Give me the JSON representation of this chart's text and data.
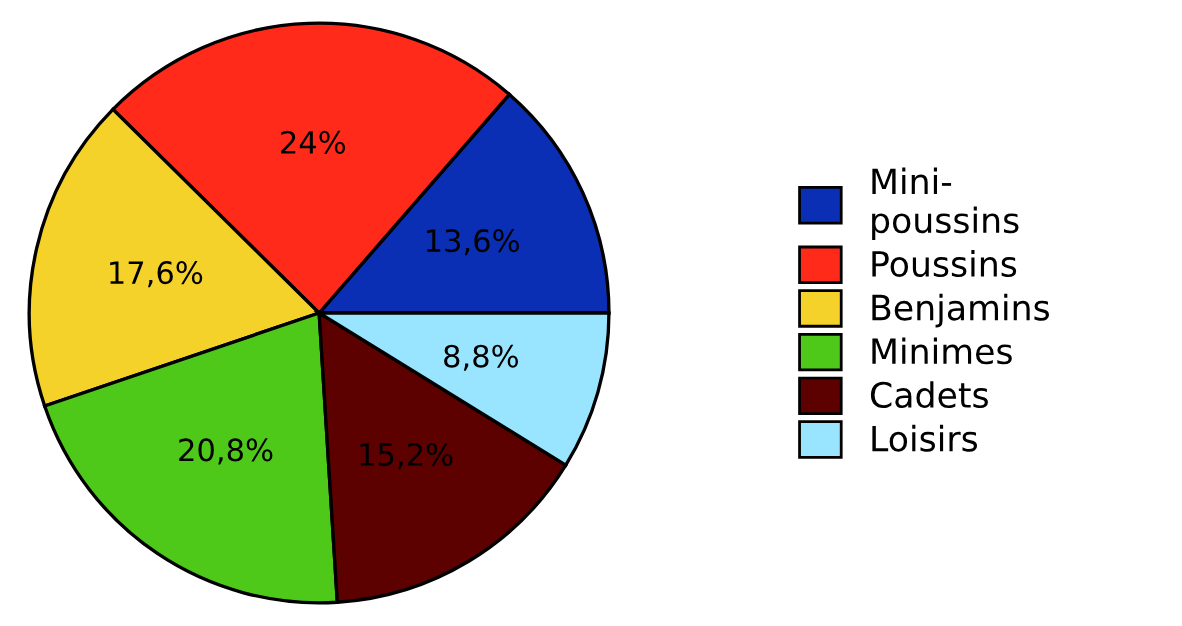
{
  "chart_data": {
    "type": "pie",
    "categories": [
      "Mini-\npoussins",
      "Poussins",
      "Benjamins",
      "Minimes",
      "Cadets",
      "Loisirs"
    ],
    "values": [
      13.6,
      24,
      17.6,
      20.8,
      15.2,
      8.8
    ],
    "value_labels": [
      "13,6%",
      "24%",
      "17,6%",
      "20,8%",
      "15,2%",
      "8,8%"
    ],
    "colors": [
      "#0a2fb5",
      "#ff2a1a",
      "#f5d22a",
      "#4ec91a",
      "#5c0000",
      "#99e5ff"
    ],
    "legend": "right"
  }
}
